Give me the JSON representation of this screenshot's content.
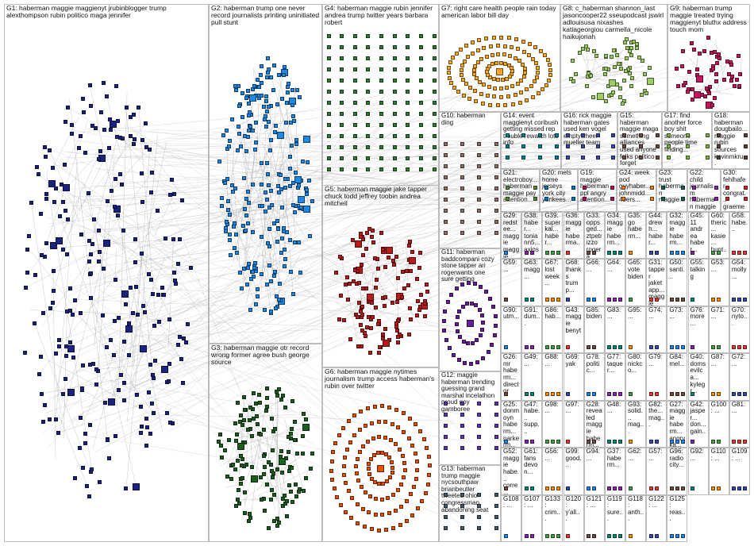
{
  "graph": {
    "groups": [
      {
        "id": "G1",
        "label": "G1: haberman maggie maggienyt jrubinblogger trump alexthompson rubin politico maga jennifer",
        "color": "#1a237e",
        "shape": "ellipse-tall"
      },
      {
        "id": "G2",
        "label": "G2: haberman trump one never record journalists printing uninitiated pull stunt",
        "color": "#1e88e5",
        "shape": "cluster"
      },
      {
        "id": "G3",
        "label": "G3: haberman maggie otr record wrong former agree bush george source",
        "color": "#1b5e20",
        "shape": "ellipse"
      },
      {
        "id": "G4",
        "label": "G4: haberman maggie rubin jennifer andrea trump twitter years barbara robert",
        "color": "#2e7d32",
        "shape": "grid"
      },
      {
        "id": "G5",
        "label": "G5: haberman maggie jake tapper chuck todd jeffrey toobin andrea mitchell",
        "color": "#b71c1c",
        "shape": "ellipse"
      },
      {
        "id": "G6",
        "label": "G6: haberman maggie nytimes journalism trump access haberman's rubin over twitter",
        "color": "#e65100",
        "shape": "spiral"
      },
      {
        "id": "G7",
        "label": "G7: right care health people rain today american labor bill day",
        "color": "#f9a825",
        "shape": "rings"
      },
      {
        "id": "G8",
        "label": "G8: c_haberman shannon_last jasoncooper22 sseupodcast jswirl adlouisusa nixashes katiageorgiou carmella_nicole haikujonah",
        "color": "#9ccc65",
        "shape": "cluster"
      },
      {
        "id": "G9",
        "label": "G9: haberman trump maggie treated trying maggienyt bluthx address touch mom",
        "color": "#c2185b",
        "shape": "cluster"
      },
      {
        "id": "G10",
        "label": "G10: haberman ding",
        "color": "#8d6e63",
        "shape": "grid"
      },
      {
        "id": "G11",
        "label": "G11: haberman baddcompani cozy stone tapper ari rogerwants one sure getting",
        "color": "#6a1b9a",
        "shape": "ring"
      },
      {
        "id": "G12",
        "label": "G12: maggie haberman trending guessing grand marshal incelathon proud goy gamboree",
        "color": "#5e35b1",
        "shape": "grid"
      },
      {
        "id": "G13",
        "label": "G13: haberman trump maggie nycsouthpaw brianbeutler tweeted ohio congressman abandoning seat",
        "color": "#455a64",
        "shape": "grid"
      },
      {
        "id": "G14",
        "label": "G14: event maggienyt coribush getting missed rep trouble rewatch lots info",
        "color": "#00838f",
        "shape": "grid"
      },
      {
        "id": "G15",
        "label": "G15: haberman maggie maga something alliances used anyone folks politico forget",
        "color": "#6d4c41",
        "shape": "grid"
      },
      {
        "id": "G16",
        "label": "G16: rick maggie haberman gates used ken vogel emptywheel mueller team",
        "color": "#3949ab",
        "shape": "grid"
      },
      {
        "id": "G17",
        "label": "G17: find another force boy shit someone people time finding...",
        "color": "#7cb342",
        "shape": "grid"
      },
      {
        "id": "G18",
        "label": "G18: haberman dougbailo... maggie rubin sources kevinmkru...",
        "color": "#5d4037",
        "shape": "grid"
      },
      {
        "id": "G19",
        "label": "G19: maggie haberman ppl angry attention...",
        "color": "#ad1457",
        "shape": "grid"
      },
      {
        "id": "G20",
        "label": "G20: mets home jerseys york city yankees...",
        "color": "#0277bd",
        "shape": "grid"
      },
      {
        "id": "G21",
        "label": "G21: electroboy... haberman maggie pay attention...",
        "color": "#558b2f",
        "shape": "grid"
      },
      {
        "id": "G22",
        "label": "G22: child journalism haberman maggie spake understo...",
        "color": "#8e24aa",
        "shape": "grid"
      },
      {
        "id": "G24",
        "label": "G24: week pod guyhaber... johnmidd... 49ers...",
        "color": "#f57f17",
        "shape": "grid"
      },
      {
        "id": "G23",
        "label": "G23: trust haberman maggie...",
        "color": "#00695c",
        "shape": "grid"
      },
      {
        "id": "G30",
        "label": "G30: fehlhafer congrat... graeme lancet...",
        "color": "#c62828",
        "shape": "grid"
      }
    ],
    "small_labels": [
      "G29: redstee... maggie maggie habe...",
      "G38: haber... toniann5... axios...",
      "G39: superkai... haber...",
      "G36: maggie haberma...",
      "G33: oppsged... ztpetrizzo rogera...",
      "G34: maggie haberm...",
      "G35: go haberm...",
      "G44: drewh... haber...",
      "G32: maggie haberm...",
      "G45: 11 andrea haber...",
      "G60: theric... kasie... hunt...",
      "G58: habe...",
      "G59: ...",
      "G63: magg...",
      "G67: lost week...",
      "G68: thanks trump...",
      "G66: ...",
      "G64: ...",
      "G65: vote biden",
      "G31: tapper jaketapp... maggie",
      "G50: santi...",
      "G55: talking",
      "G53: ...",
      "G54: molly...",
      "G90: utm...",
      "G91: dum...",
      "G86: hab...",
      "G43: maggie benyt",
      "G85: biden",
      "G83: ...",
      "G95: ...",
      "G74: ...",
      "G73: ...",
      "G76: more...",
      "G71: ...",
      "G70: nyto...",
      "G26: mr haberm... director",
      "G49: ...",
      "G88: ...",
      "G69: yak",
      "G78: politic...",
      "G77: taquer...",
      "G80: nickco...",
      "G79: ...",
      "G84: mel...",
      "G40: doms evilca... kylegr...",
      "G87: ...",
      "G72: ...",
      "G25: donmoyn haberm... parkerm... toxicity",
      "G47: habe... supp...",
      "G98: ...",
      "G97: ...",
      "G28: revealed maggie haberm... marc...",
      "G48: ...",
      "G93: solid... mag...",
      "G82: the... mag...",
      "G27: maggie haberm... angryka... abarnar...",
      "G42: jasper... don... gain...",
      "G100: ...",
      "G81: ...",
      "G52: maggie habe... corre...",
      "G61: fans devon...",
      "G56: ...",
      "G99: good...",
      "G94: ...",
      "G37: haberm...",
      "G62: ...",
      "G57: ...",
      "G96: radio city...",
      "G92: ...",
      "G110: ...",
      "G109: ...",
      "G108: ...",
      "G107: ...",
      "G133: crim...",
      "G120: y'all...",
      "G121: ...",
      "G119: sure...",
      "G118: anth...",
      "G122: ...",
      "G125: reas..."
    ]
  }
}
